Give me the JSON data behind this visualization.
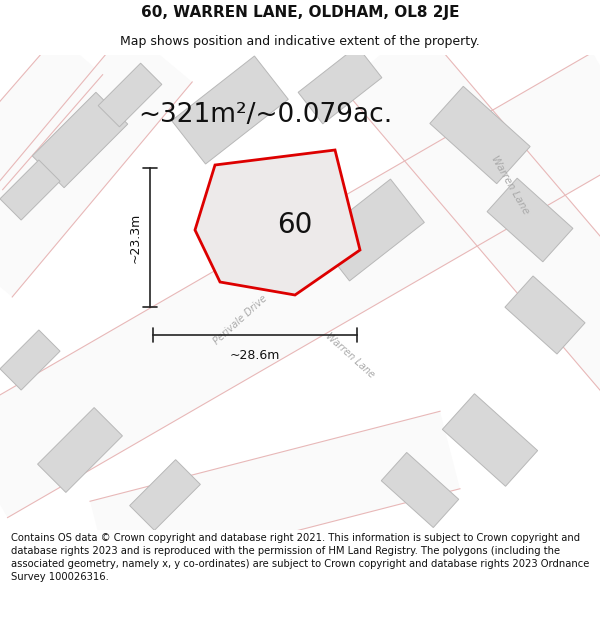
{
  "title": "60, WARREN LANE, OLDHAM, OL8 2JE",
  "subtitle": "Map shows position and indicative extent of the property.",
  "area_text": "~321m²/~0.079ac.",
  "number_label": "60",
  "width_label": "~28.6m",
  "height_label": "~23.3m",
  "footer_text": "Contains OS data © Crown copyright and database right 2021. This information is subject to Crown copyright and database rights 2023 and is reproduced with the permission of HM Land Registry. The polygons (including the associated geometry, namely x, y co-ordinates) are subject to Crown copyright and database rights 2023 Ordnance Survey 100026316.",
  "bg_color": "#f8f7f5",
  "map_bg": "#f2f0ed",
  "plot_outline_color": "#dd0000",
  "plot_fill_color": "#edeaea",
  "title_fontsize": 11,
  "subtitle_fontsize": 9,
  "area_fontsize": 19,
  "number_fontsize": 20,
  "footer_fontsize": 7.2,
  "road_pink": "#e8b8b8",
  "road_white": "#fafafa",
  "building_fill": "#d8d8d8",
  "building_edge": "#b8b8b8",
  "street_color": "#aaaaaa",
  "dim_color": "#222222"
}
